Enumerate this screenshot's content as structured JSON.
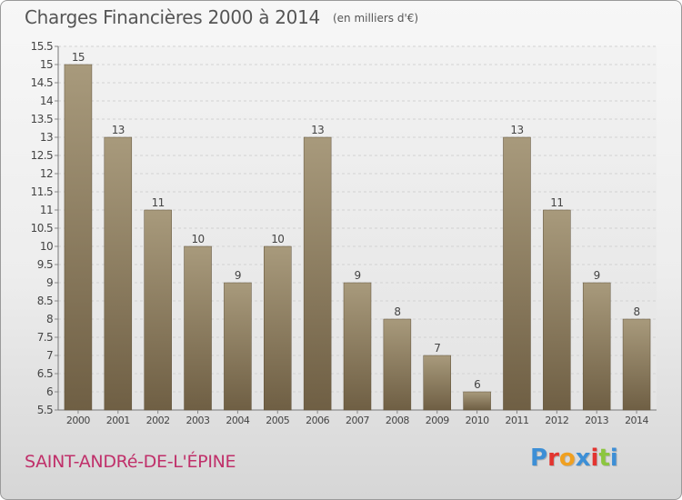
{
  "title": "Charges Financières 2000 à 2014",
  "subtitle": "(en milliers d'€)",
  "commune": "SAINT-ANDRé-DE-L'ÉPINE",
  "logo": {
    "letters": [
      "P",
      "r",
      "o",
      "x",
      "i",
      "t",
      "i"
    ],
    "colors": [
      "#3d8fd6",
      "#e3342f",
      "#f0a020",
      "#3d8fd6",
      "#e3342f",
      "#8cc63f",
      "#3d8fd6"
    ]
  },
  "colors": {
    "bar_top": "#a89a7c",
    "bar_bottom": "#6f5f44",
    "title": "#555555",
    "commune": "#c0306a"
  },
  "chart_data": {
    "type": "bar",
    "categories": [
      "2000",
      "2001",
      "2002",
      "2003",
      "2004",
      "2005",
      "2006",
      "2007",
      "2008",
      "2009",
      "2010",
      "2011",
      "2012",
      "2013",
      "2014"
    ],
    "values": [
      15,
      13,
      11,
      10,
      9,
      10,
      13,
      9,
      8,
      7,
      6,
      13,
      11,
      9,
      8
    ],
    "data_labels": [
      "15",
      "13",
      "11",
      "10",
      "9",
      "10",
      "13",
      "9",
      "8",
      "7",
      "6",
      "13",
      "11",
      "9",
      "8"
    ],
    "ylim": [
      5.5,
      15.5
    ],
    "yticks": [
      "5.5",
      "6",
      "6.5",
      "7",
      "7.5",
      "8",
      "8.5",
      "9",
      "9.5",
      "10",
      "10.5",
      "11",
      "11.5",
      "12",
      "12.5",
      "13",
      "13.5",
      "14",
      "14.5",
      "15",
      "15.5"
    ],
    "grid": true,
    "xlabel": "",
    "ylabel": ""
  }
}
